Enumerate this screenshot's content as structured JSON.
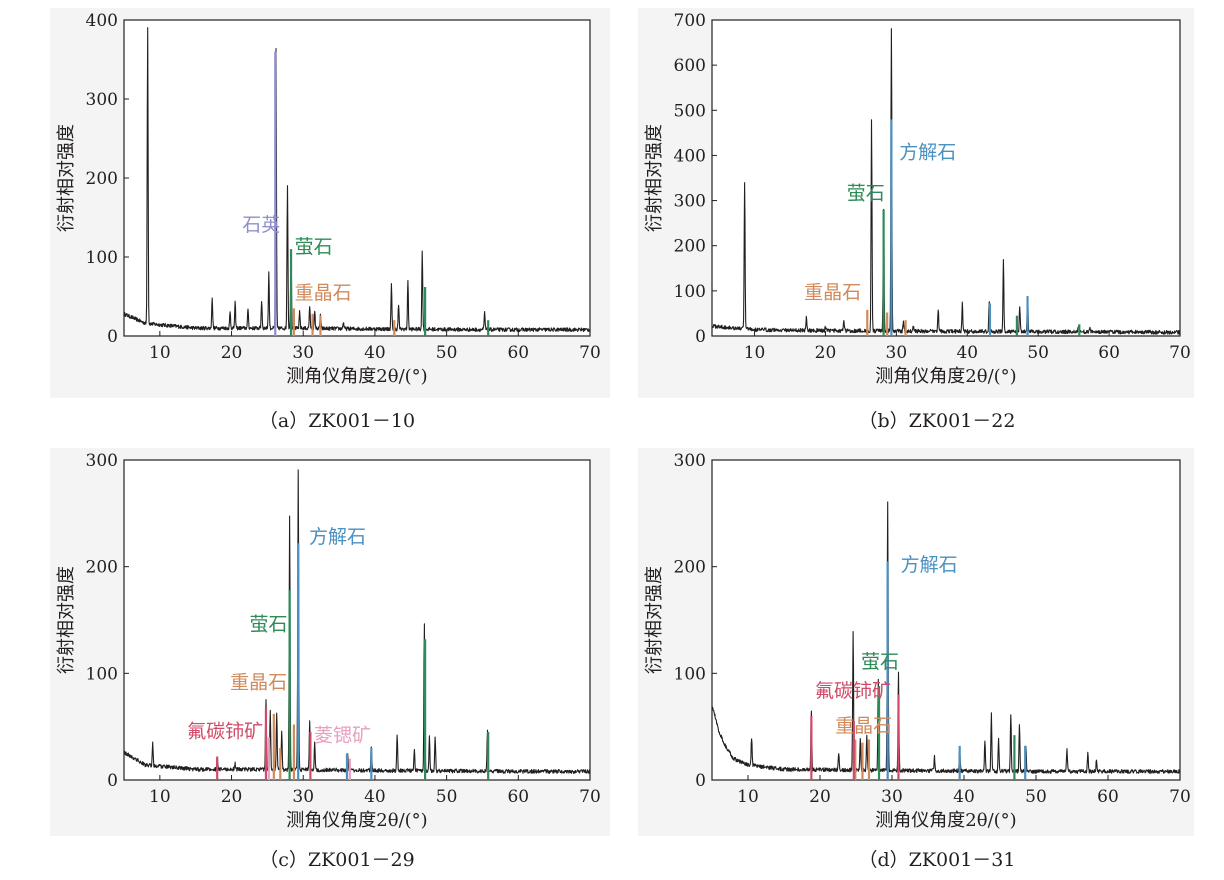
{
  "figure": {
    "y_label": "衍射相对强度",
    "x_label": "测角仪角度2θ/(°)"
  },
  "mineral_colors": {
    "quartz": "#8f8fd0",
    "fluorite": "#2e8b57",
    "barite": "#d08a5c",
    "calcite": "#4a90c0",
    "bastnaesite": "#d14a68",
    "strontianite": "#e8a0c0"
  },
  "chart_data": [
    {
      "type": "line",
      "panel": "a",
      "caption": "（a）ZK001－10",
      "xlabel": "测角仪角度2θ/(°)",
      "ylabel": "衍射相对强度",
      "xlim": [
        5,
        70
      ],
      "ylim": [
        0,
        400
      ],
      "xticks": [
        10,
        20,
        30,
        40,
        50,
        60,
        70
      ],
      "yticks": [
        0,
        100,
        200,
        300,
        400
      ],
      "background": [
        [
          5,
          28
        ],
        [
          8,
          16
        ],
        [
          15,
          10
        ],
        [
          25,
          10
        ],
        [
          40,
          9
        ],
        [
          55,
          8
        ],
        [
          70,
          8
        ]
      ],
      "peaks": [
        [
          8.3,
          390
        ],
        [
          17.3,
          50
        ],
        [
          19.8,
          30
        ],
        [
          20.5,
          42
        ],
        [
          22.3,
          35
        ],
        [
          24.2,
          45
        ],
        [
          25.2,
          80
        ],
        [
          26.2,
          362
        ],
        [
          27.8,
          192
        ],
        [
          28.3,
          105
        ],
        [
          29.5,
          30
        ],
        [
          30.9,
          38
        ],
        [
          31.6,
          30
        ],
        [
          32.4,
          28
        ],
        [
          35.6,
          18
        ],
        [
          42.3,
          65
        ],
        [
          43.3,
          40
        ],
        [
          44.6,
          68
        ],
        [
          46.6,
          107
        ],
        [
          55.3,
          30
        ]
      ],
      "colored_peaks": [
        {
          "mineral": "quartz",
          "x": 26.1,
          "y": 360
        },
        {
          "mineral": "fluorite",
          "x": 28.3,
          "y": 110
        },
        {
          "mineral": "fluorite",
          "x": 47.0,
          "y": 62
        },
        {
          "mineral": "fluorite",
          "x": 55.8,
          "y": 20
        },
        {
          "mineral": "barite",
          "x": 28.7,
          "y": 35
        },
        {
          "mineral": "barite",
          "x": 31.3,
          "y": 28
        },
        {
          "mineral": "barite",
          "x": 32.4,
          "y": 26
        },
        {
          "mineral": "barite",
          "x": 42.7,
          "y": 20
        }
      ],
      "annotations": [
        {
          "mineral": "quartz",
          "text": "石英",
          "x": 21.5,
          "y": 133
        },
        {
          "mineral": "fluorite",
          "text": "萤石",
          "x": 28.8,
          "y": 105
        },
        {
          "mineral": "barite",
          "text": "重晶石",
          "x": 28.8,
          "y": 47
        }
      ]
    },
    {
      "type": "line",
      "panel": "b",
      "caption": "（b）ZK001－22",
      "xlabel": "测角仪角度2θ/(°)",
      "ylabel": "衍射相对强度",
      "xlim": [
        4,
        70
      ],
      "ylim": [
        0,
        700
      ],
      "xticks": [
        10,
        20,
        30,
        40,
        50,
        60,
        70
      ],
      "yticks": [
        0,
        100,
        200,
        300,
        400,
        500,
        600,
        700
      ],
      "background": [
        [
          4,
          22
        ],
        [
          10,
          14
        ],
        [
          20,
          12
        ],
        [
          40,
          10
        ],
        [
          60,
          9
        ],
        [
          70,
          8
        ]
      ],
      "peaks": [
        [
          8.6,
          342
        ],
        [
          17.3,
          40
        ],
        [
          20.0,
          20
        ],
        [
          22.6,
          35
        ],
        [
          26.5,
          478
        ],
        [
          28.2,
          282
        ],
        [
          29.3,
          677
        ],
        [
          31.0,
          30
        ],
        [
          32.4,
          25
        ],
        [
          35.9,
          60
        ],
        [
          39.3,
          75
        ],
        [
          43.1,
          72
        ],
        [
          45.1,
          168
        ],
        [
          47.4,
          68
        ],
        [
          48.5,
          88
        ],
        [
          55.7,
          26
        ],
        [
          57.3,
          20
        ]
      ],
      "colored_peaks": [
        {
          "mineral": "calcite",
          "x": 29.3,
          "y": 480
        },
        {
          "mineral": "calcite",
          "x": 43.2,
          "y": 72
        },
        {
          "mineral": "calcite",
          "x": 48.5,
          "y": 88
        },
        {
          "mineral": "fluorite",
          "x": 28.2,
          "y": 280
        },
        {
          "mineral": "fluorite",
          "x": 47.0,
          "y": 45
        },
        {
          "mineral": "fluorite",
          "x": 55.8,
          "y": 26
        },
        {
          "mineral": "barite",
          "x": 25.9,
          "y": 58
        },
        {
          "mineral": "barite",
          "x": 28.7,
          "y": 52
        },
        {
          "mineral": "barite",
          "x": 31.3,
          "y": 35
        }
      ],
      "annotations": [
        {
          "mineral": "calcite",
          "text": "方解石",
          "x": 30.4,
          "y": 393
        },
        {
          "mineral": "fluorite",
          "text": "萤石",
          "x": 23.0,
          "y": 302
        },
        {
          "mineral": "barite",
          "text": "重晶石",
          "x": 17.0,
          "y": 83
        }
      ]
    },
    {
      "type": "line",
      "panel": "c",
      "caption": "（c）ZK001－29",
      "xlabel": "测角仪角度2θ/(°)",
      "ylabel": "衍射相对强度",
      "xlim": [
        5,
        70
      ],
      "ylim": [
        0,
        300
      ],
      "xticks": [
        10,
        20,
        30,
        40,
        50,
        60,
        70
      ],
      "yticks": [
        0,
        100,
        200,
        300
      ],
      "background": [
        [
          5,
          26
        ],
        [
          8,
          14
        ],
        [
          15,
          10
        ],
        [
          25,
          10
        ],
        [
          40,
          9
        ],
        [
          60,
          8
        ],
        [
          70,
          8
        ]
      ],
      "peaks": [
        [
          9.0,
          34
        ],
        [
          18.0,
          20
        ],
        [
          20.5,
          15
        ],
        [
          24.8,
          74
        ],
        [
          25.4,
          65
        ],
        [
          26.3,
          62
        ],
        [
          27.0,
          45
        ],
        [
          28.1,
          248
        ],
        [
          29.3,
          290
        ],
        [
          30.9,
          55
        ],
        [
          31.6,
          35
        ],
        [
          36.2,
          25
        ],
        [
          39.5,
          32
        ],
        [
          43.1,
          42
        ],
        [
          45.5,
          30
        ],
        [
          46.9,
          148
        ],
        [
          47.6,
          40
        ],
        [
          48.4,
          42
        ],
        [
          55.7,
          47
        ]
      ],
      "colored_peaks": [
        {
          "mineral": "calcite",
          "x": 29.3,
          "y": 222
        },
        {
          "mineral": "calcite",
          "x": 36.1,
          "y": 25
        },
        {
          "mineral": "calcite",
          "x": 39.5,
          "y": 30
        },
        {
          "mineral": "fluorite",
          "x": 28.1,
          "y": 178
        },
        {
          "mineral": "fluorite",
          "x": 47.0,
          "y": 132
        },
        {
          "mineral": "fluorite",
          "x": 55.8,
          "y": 45
        },
        {
          "mineral": "barite",
          "x": 25.9,
          "y": 62
        },
        {
          "mineral": "barite",
          "x": 28.7,
          "y": 52
        },
        {
          "mineral": "barite",
          "x": 26.8,
          "y": 30
        },
        {
          "mineral": "bastnaesite",
          "x": 18.0,
          "y": 22
        },
        {
          "mineral": "bastnaesite",
          "x": 24.8,
          "y": 68
        },
        {
          "mineral": "bastnaesite",
          "x": 31.0,
          "y": 45
        },
        {
          "mineral": "strontianite",
          "x": 25.2,
          "y": 40
        },
        {
          "mineral": "strontianite",
          "x": 36.5,
          "y": 20
        }
      ],
      "annotations": [
        {
          "mineral": "calcite",
          "text": "方解石",
          "x": 30.8,
          "y": 222
        },
        {
          "mineral": "fluorite",
          "text": "萤石",
          "x": 22.5,
          "y": 140
        },
        {
          "mineral": "barite",
          "text": "重晶石",
          "x": 19.8,
          "y": 86
        },
        {
          "mineral": "bastnaesite",
          "text": "氟碳铈矿",
          "x": 13.8,
          "y": 40
        },
        {
          "mineral": "strontianite",
          "text": "菱锶矿",
          "x": 31.5,
          "y": 36
        }
      ]
    },
    {
      "type": "line",
      "panel": "d",
      "caption": "（d）ZK001－31",
      "xlabel": "测角仪角度2θ/(°)",
      "ylabel": "衍射相对强度",
      "xlim": [
        5,
        70
      ],
      "ylim": [
        0,
        300
      ],
      "xticks": [
        10,
        20,
        30,
        40,
        50,
        60,
        70
      ],
      "yticks": [
        0,
        100,
        200,
        300
      ],
      "background": [
        [
          5,
          70
        ],
        [
          6,
          45
        ],
        [
          7,
          30
        ],
        [
          8,
          20
        ],
        [
          10,
          14
        ],
        [
          15,
          10
        ],
        [
          30,
          9
        ],
        [
          50,
          8
        ],
        [
          70,
          8
        ]
      ],
      "peaks": [
        [
          10.5,
          40
        ],
        [
          18.8,
          65
        ],
        [
          22.6,
          25
        ],
        [
          24.6,
          138
        ],
        [
          25.6,
          40
        ],
        [
          26.5,
          42
        ],
        [
          28.1,
          95
        ],
        [
          29.4,
          262
        ],
        [
          30.9,
          100
        ],
        [
          35.9,
          22
        ],
        [
          39.4,
          30
        ],
        [
          42.9,
          38
        ],
        [
          43.8,
          62
        ],
        [
          44.8,
          40
        ],
        [
          46.5,
          62
        ],
        [
          47.7,
          52
        ],
        [
          48.6,
          30
        ],
        [
          54.3,
          28
        ],
        [
          57.2,
          25
        ],
        [
          58.4,
          20
        ]
      ],
      "colored_peaks": [
        {
          "mineral": "calcite",
          "x": 29.4,
          "y": 205
        },
        {
          "mineral": "calcite",
          "x": 39.4,
          "y": 32
        },
        {
          "mineral": "calcite",
          "x": 48.5,
          "y": 32
        },
        {
          "mineral": "fluorite",
          "x": 28.2,
          "y": 88
        },
        {
          "mineral": "fluorite",
          "x": 47.0,
          "y": 42
        },
        {
          "mineral": "barite",
          "x": 24.9,
          "y": 38
        },
        {
          "mineral": "barite",
          "x": 25.9,
          "y": 35
        },
        {
          "mineral": "barite",
          "x": 26.8,
          "y": 38
        },
        {
          "mineral": "bastnaesite",
          "x": 18.8,
          "y": 60
        },
        {
          "mineral": "bastnaesite",
          "x": 24.7,
          "y": 55
        },
        {
          "mineral": "bastnaesite",
          "x": 30.9,
          "y": 80
        }
      ],
      "annotations": [
        {
          "mineral": "calcite",
          "text": "方解石",
          "x": 31.2,
          "y": 196
        },
        {
          "mineral": "fluorite",
          "text": "萤石",
          "x": 25.7,
          "y": 105
        },
        {
          "mineral": "barite",
          "text": "重晶石",
          "x": 22.1,
          "y": 45
        },
        {
          "mineral": "bastnaesite",
          "text": "氟碳铈矿",
          "x": 19.3,
          "y": 78
        }
      ]
    }
  ]
}
